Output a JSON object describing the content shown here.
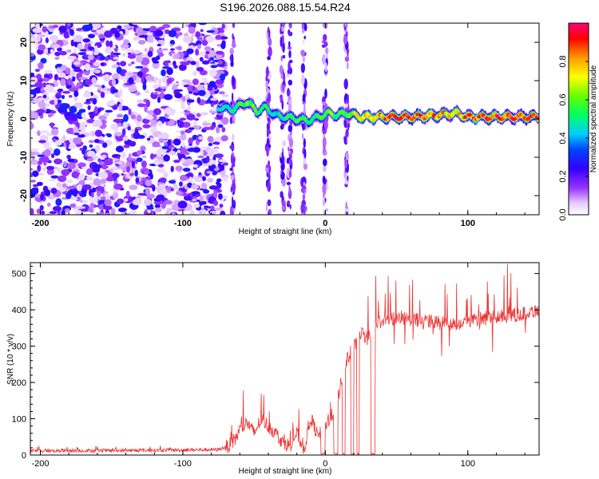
{
  "title": "S196.2026.088.15.54.R24",
  "chart_data": [
    {
      "type": "heatmap",
      "panel": "spectrogram",
      "xlabel": "Height of straight line (km)",
      "ylabel": "Frequency (Hz)",
      "xlim": [
        -207,
        150
      ],
      "ylim": [
        -25,
        25
      ],
      "xticks": [
        -200,
        -100,
        0,
        100
      ],
      "xtick_labels": [
        "-200",
        "-100",
        "0",
        "100"
      ],
      "yticks": [
        -20,
        -10,
        0,
        10,
        20
      ],
      "ytick_labels": [
        "-20",
        "-10",
        "0",
        "10",
        "20"
      ],
      "noise_region_x": [
        -207,
        -70
      ],
      "ridge": {
        "x": [
          -75,
          -65,
          -55,
          -48,
          -42,
          -35,
          -28,
          -20,
          -12,
          -5,
          2,
          8,
          15,
          25,
          40,
          60,
          80,
          92,
          100,
          120,
          150
        ],
        "freq": [
          3,
          2.5,
          4.5,
          2,
          3,
          1,
          0.5,
          0,
          -0.5,
          0.5,
          1.5,
          1,
          1.5,
          0.5,
          0.5,
          0.5,
          1,
          1.5,
          0.5,
          0.5,
          0.5
        ],
        "amplitude": [
          0.45,
          0.5,
          0.6,
          0.55,
          0.5,
          0.45,
          0.5,
          0.55,
          0.5,
          0.55,
          0.6,
          0.55,
          0.6,
          0.75,
          0.85,
          0.9,
          0.8,
          0.75,
          0.85,
          0.9,
          0.9
        ]
      },
      "vertical_streaks_x": [
        -65,
        -40,
        -30,
        -25,
        -15,
        0,
        15
      ],
      "colorbar": {
        "label": "Normalized spectral amplitude",
        "range": [
          0,
          1
        ],
        "ticks": [
          0.0,
          0.2,
          0.4,
          0.6,
          0.8
        ],
        "tick_labels": [
          "0.0",
          "0.2",
          "0.4",
          "0.6",
          "0.8"
        ],
        "colors": [
          "#ffffff",
          "#cc99ff",
          "#6600ff",
          "#0000ff",
          "#00ccff",
          "#00ff66",
          "#66ff00",
          "#ffff00",
          "#ff9900",
          "#ff0000",
          "#ff0066"
        ]
      }
    },
    {
      "type": "line",
      "panel": "snr",
      "xlabel": "Height of straight line (km)",
      "ylabel": "SNR (10 * v/v)",
      "xlim": [
        -207,
        150
      ],
      "ylim": [
        0,
        530
      ],
      "xticks": [
        -200,
        -100,
        0,
        100
      ],
      "xtick_labels": [
        "-200",
        "-100",
        "0",
        "100"
      ],
      "yticks": [
        0,
        100,
        200,
        300,
        400,
        500
      ],
      "ytick_labels": [
        "0",
        "100",
        "200",
        "300",
        "400",
        "500"
      ],
      "color": "#ee3333",
      "series_envelope": {
        "x": [
          -207,
          -150,
          -100,
          -75,
          -65,
          -60,
          -55,
          -50,
          -45,
          -40,
          -35,
          -30,
          -25,
          -20,
          -15,
          -10,
          -5,
          0,
          5,
          10,
          15,
          20,
          25,
          30,
          35,
          40,
          50,
          60,
          70,
          80,
          90,
          100,
          110,
          120,
          130,
          140,
          150
        ],
        "value": [
          12,
          12,
          14,
          15,
          30,
          70,
          90,
          60,
          100,
          80,
          60,
          35,
          25,
          60,
          15,
          100,
          50,
          80,
          110,
          180,
          260,
          300,
          340,
          320,
          360,
          370,
          380,
          375,
          370,
          365,
          360,
          370,
          375,
          380,
          385,
          390,
          400
        ]
      }
    }
  ]
}
